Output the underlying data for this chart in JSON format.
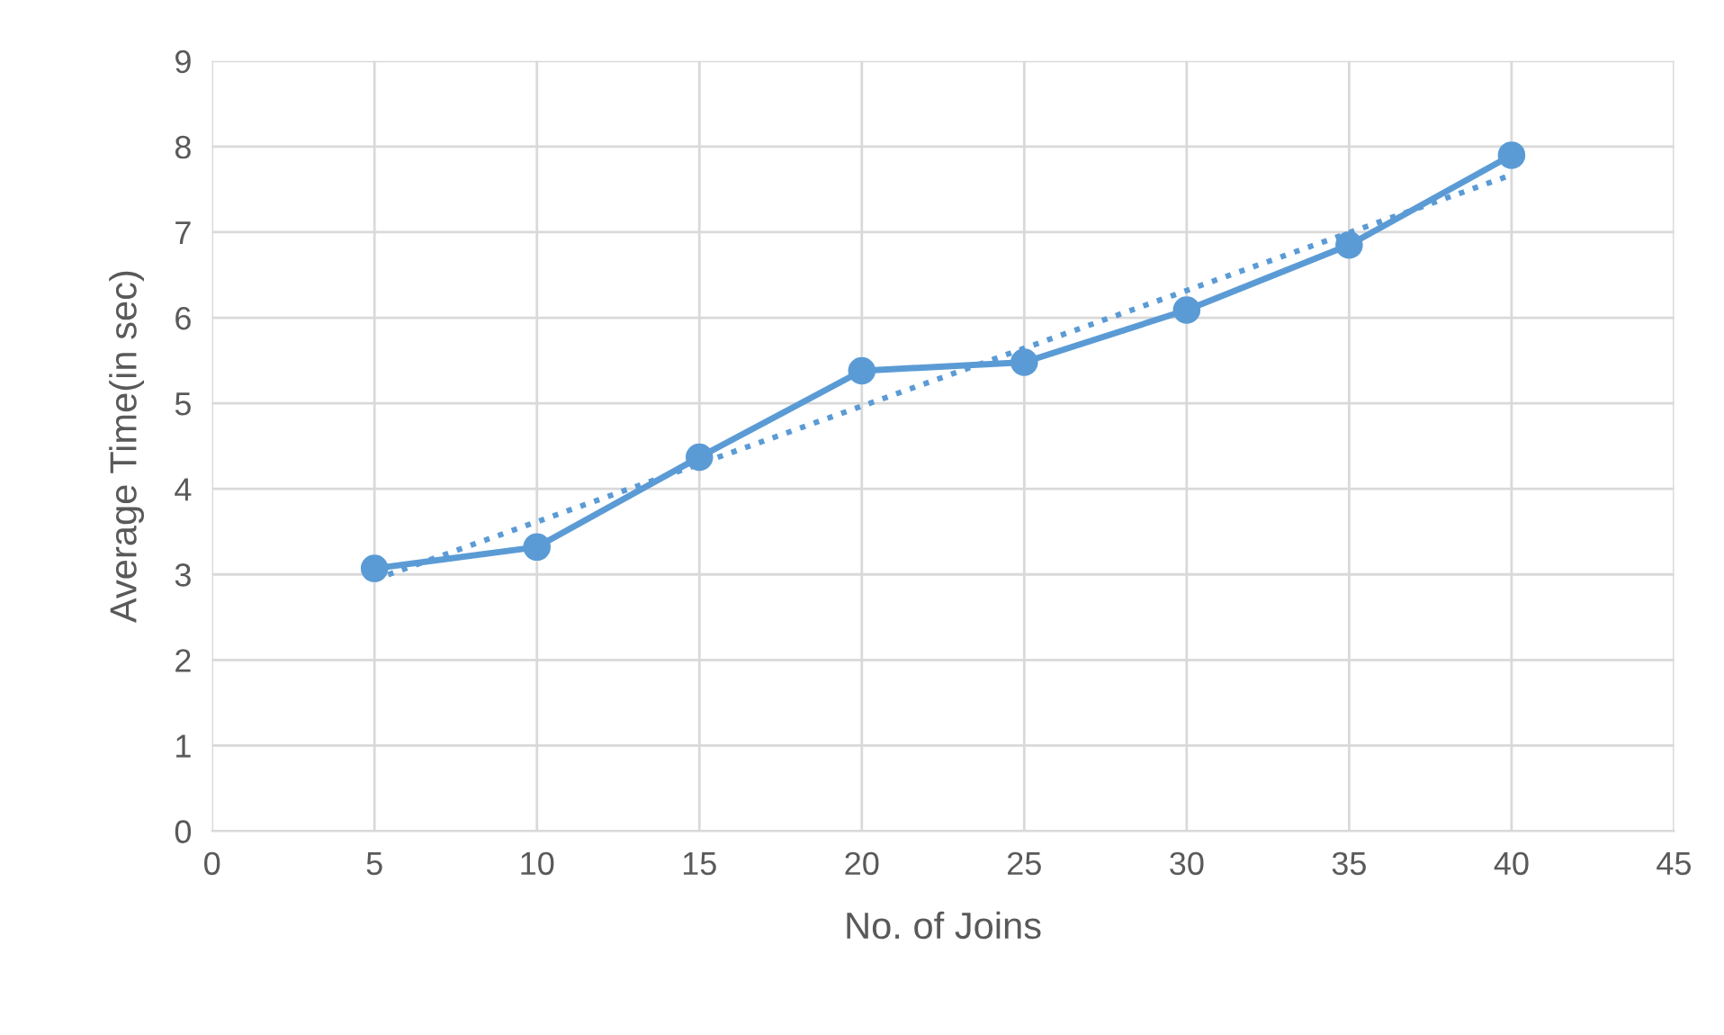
{
  "chart_data": {
    "type": "line",
    "xlabel": "No. of Joins",
    "ylabel": "Average Time(in sec)",
    "xlim": [
      0,
      45
    ],
    "xticks": [
      0,
      5,
      10,
      15,
      20,
      25,
      30,
      35,
      40,
      45
    ],
    "ylim": [
      0,
      9
    ],
    "yticks": [
      0,
      1,
      2,
      3,
      4,
      5,
      6,
      7,
      8,
      9
    ],
    "grid": true,
    "legend": false,
    "series": [
      {
        "x": [
          5,
          10,
          15,
          20,
          25,
          30,
          35,
          40
        ],
        "values": [
          3.07,
          3.32,
          4.37,
          5.38,
          5.48,
          6.09,
          6.85,
          7.9
        ],
        "color": "#5b9bd5",
        "marker": "circle",
        "line_style": "solid"
      },
      {
        "type": "line",
        "x": [
          5,
          40
        ],
        "values": [
          2.94,
          7.67
        ],
        "color": "#5b9bd5",
        "marker": "none",
        "line_style": "dotted"
      }
    ]
  }
}
